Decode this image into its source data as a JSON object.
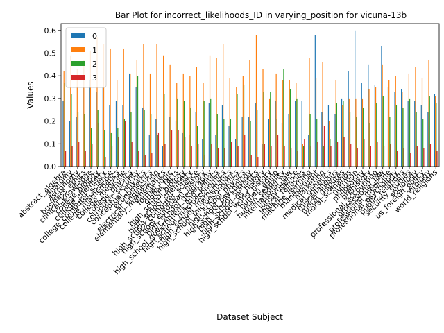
{
  "chart_data": {
    "type": "bar",
    "title": "Bar Plot for incorrect_likelihoods_ID in varying_position for vicuna-13b",
    "xlabel": "Dataset Subject",
    "ylabel": "Values",
    "ylim": [
      0,
      0.63
    ],
    "yticks": [
      "0.0",
      "0.1",
      "0.2",
      "0.3",
      "0.4",
      "0.5",
      "0.6"
    ],
    "grid": false,
    "legend_position": "upper-left",
    "categories": [
      "abstract_algebra",
      "anatomy",
      "astronomy",
      "business_ethics",
      "clinical_knowledge",
      "college_biology",
      "college_chemistry",
      "college_computer_science",
      "college_mathematics",
      "college_medicine",
      "college_physics",
      "computer_security",
      "conceptual_physics",
      "econometrics",
      "electrical_engineering",
      "elementary_mathematics",
      "formal_logic",
      "global_facts",
      "high_school_biology",
      "high_school_chemistry",
      "high_school_computer_science",
      "high_school_european_history",
      "high_school_geography",
      "high_school_government_and_politics",
      "high_school_macroeconomics",
      "high_school_mathematics",
      "high_school_microeconomics",
      "high_school_physics",
      "high_school_psychology",
      "high_school_statistics",
      "high_school_us_history",
      "high_school_world_history",
      "human_aging",
      "human_sexuality",
      "international_law",
      "jurisprudence",
      "logical_fallacies",
      "machine_learning",
      "management",
      "marketing",
      "medical_genetics",
      "miscellaneous",
      "moral_disputes",
      "moral_scenarios",
      "nutrition",
      "philosophy",
      "prehistory",
      "professional_accounting",
      "professional_law",
      "professional_medicine",
      "professional_psychology",
      "public_relations",
      "security_studies",
      "sociology",
      "us_foreign_policy",
      "virology",
      "world_religions"
    ],
    "series": [
      {
        "name": "0",
        "color": "#1f77b4",
        "values": [
          0.29,
          0.2,
          0.22,
          0.43,
          0.38,
          0.33,
          0.35,
          0.27,
          0.29,
          0.27,
          0.41,
          0.35,
          0.26,
          0.14,
          0.21,
          0.09,
          0.22,
          0.2,
          0.15,
          0.14,
          0.24,
          0.12,
          0.28,
          0.14,
          0.27,
          0.18,
          0.12,
          0.22,
          0.22,
          0.28,
          0.1,
          0.21,
          0.29,
          0.19,
          0.23,
          0.29,
          0.29,
          0.14,
          0.58,
          0.24,
          0.27,
          0.23,
          0.3,
          0.42,
          0.6,
          0.37,
          0.45,
          0.36,
          0.53,
          0.35,
          0.33,
          0.34,
          0.29,
          0.29,
          0.27,
          0.24,
          0.32
        ]
      },
      {
        "name": "1",
        "color": "#ff7f0e",
        "values": [
          0.42,
          0.49,
          0.43,
          0.47,
          0.51,
          0.57,
          0.54,
          0.52,
          0.38,
          0.52,
          0.41,
          0.47,
          0.54,
          0.41,
          0.54,
          0.49,
          0.45,
          0.37,
          0.41,
          0.4,
          0.44,
          0.37,
          0.49,
          0.48,
          0.54,
          0.39,
          0.35,
          0.4,
          0.47,
          0.58,
          0.43,
          0.3,
          0.41,
          0.38,
          0.38,
          0.37,
          0.1,
          0.48,
          0.39,
          0.46,
          0.2,
          0.38,
          0.27,
          0.3,
          0.3,
          0.3,
          0.34,
          0.35,
          0.45,
          0.38,
          0.4,
          0.33,
          0.41,
          0.44,
          0.39,
          0.47,
          0.31
        ]
      },
      {
        "name": "2",
        "color": "#2ca02c",
        "values": [
          0.37,
          0.32,
          0.24,
          0.23,
          0.17,
          0.25,
          0.16,
          0.15,
          0.17,
          0.21,
          0.24,
          0.4,
          0.25,
          0.23,
          0.14,
          0.32,
          0.22,
          0.3,
          0.29,
          0.26,
          0.18,
          0.29,
          0.3,
          0.23,
          0.21,
          0.21,
          0.32,
          0.36,
          0.2,
          0.25,
          0.33,
          0.33,
          0.21,
          0.43,
          0.34,
          0.3,
          0.09,
          0.23,
          0.21,
          0.09,
          0.12,
          0.28,
          0.29,
          0.24,
          0.22,
          0.26,
          0.19,
          0.28,
          0.31,
          0.22,
          0.27,
          0.26,
          0.3,
          0.24,
          0.21,
          0.31,
          0.28
        ]
      },
      {
        "name": "3",
        "color": "#d62728",
        "values": [
          0.07,
          0.09,
          0.11,
          0.07,
          0.1,
          0.19,
          0.04,
          0.09,
          0.13,
          0.2,
          0.11,
          0.07,
          0.05,
          0.06,
          0.15,
          0.1,
          0.16,
          0.16,
          0.13,
          0.09,
          0.1,
          0.05,
          0.1,
          0.08,
          0.08,
          0.11,
          0.09,
          0.14,
          0.05,
          0.04,
          0.1,
          0.09,
          0.14,
          0.09,
          0.08,
          0.07,
          0.12,
          0.09,
          0.11,
          0.18,
          0.09,
          0.11,
          0.13,
          0.1,
          0.08,
          0.12,
          0.09,
          0.11,
          0.09,
          0.1,
          0.07,
          0.08,
          0.06,
          0.09,
          0.08,
          0.1,
          0.07
        ]
      }
    ]
  }
}
